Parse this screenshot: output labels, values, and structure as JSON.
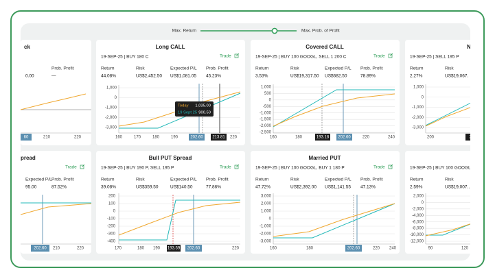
{
  "slider": {
    "left_label": "Max. Return",
    "right_label": "Max. Prob. of Profit"
  },
  "cards": [
    {
      "title": "ck",
      "stats": [
        {
          "value": "0.00"
        },
        {
          "label": "Prob. Profit",
          "value": "—"
        }
      ],
      "xticks": [
        "210",
        "220"
      ],
      "markers": [
        "60"
      ]
    },
    {
      "title": "Long CALL",
      "subtitle": "19-SEP-25 | BUY 180 C",
      "trade": "Trade",
      "stats": [
        {
          "label": "Return",
          "value": "44.08%"
        },
        {
          "label": "Risk",
          "value": "US$2,452.50"
        },
        {
          "label": "Expected P/L",
          "value": "US$1,081.05"
        },
        {
          "label": "Prob. Profit",
          "value": "45.23%"
        }
      ],
      "yticks": [
        "1,000",
        "0",
        "-1,000",
        "-2,000",
        "-3,000"
      ],
      "xticks": [
        "160",
        "170",
        "180",
        "190",
        "220"
      ],
      "markers": [
        "202.60",
        "213.81"
      ],
      "tooltip": {
        "today_label": "Today",
        "today_value": "1,035.00",
        "expiry_label": "19 Sept 25",
        "expiry_value": "900.50"
      }
    },
    {
      "title": "Covered CALL",
      "subtitle": "19-SEP-25 | BUY 100 GOOGL, SELL 1 200 C",
      "trade": "Trade",
      "stats": [
        {
          "label": "Return",
          "value": "3.53%"
        },
        {
          "label": "Risk",
          "value": "US$19,317.50"
        },
        {
          "label": "Expected P/L",
          "value": "US$682.50"
        },
        {
          "label": "Prob. Profit",
          "value": "78.89%"
        }
      ],
      "yticks": [
        "1,000",
        "500",
        "0",
        "-500",
        "-1,000",
        "-1,500",
        "-2,000",
        "-2,500"
      ],
      "xticks": [
        "160",
        "180",
        "220",
        "240"
      ],
      "markers": [
        "193.18",
        "202.60"
      ]
    },
    {
      "title": "N",
      "subtitle": "19-SEP-25 | SELL 195 P",
      "stats": [
        {
          "label": "Return",
          "value": "2.27%"
        },
        {
          "label": "Risk",
          "value": "US$19,067."
        }
      ],
      "yticks": [
        "1,000",
        "0",
        "-1,000",
        "-2,000",
        "-3,000"
      ],
      "xticks": [
        "200"
      ],
      "markers": [
        "2"
      ]
    },
    {
      "title": "pread",
      "trade": "Trade",
      "stats": [
        {
          "label": "Expected P/L",
          "value": "95.00"
        },
        {
          "label": "Prob. Profit",
          "value": "87.52%"
        }
      ],
      "xticks": [
        "210",
        "220"
      ],
      "markers": [
        "202.60"
      ]
    },
    {
      "title": "Bull PUT Spread",
      "subtitle": "19-SEP-25 | BUY 190 P, SELL 195 P",
      "trade": "Trade",
      "stats": [
        {
          "label": "Return",
          "value": "39.08%"
        },
        {
          "label": "Risk",
          "value": "US$359.50"
        },
        {
          "label": "Expected P/L",
          "value": "US$140.50"
        },
        {
          "label": "Prob. Profit",
          "value": "77.86%"
        }
      ],
      "yticks": [
        "200",
        "100",
        "0",
        "-100",
        "-200",
        "-300",
        "-400"
      ],
      "xticks": [
        "170",
        "180",
        "190",
        "220"
      ],
      "markers": [
        "193.59",
        "202.60"
      ]
    },
    {
      "title": "Married PUT",
      "subtitle": "19-SEP-25 | BUY 100 GOOGL, BUY 1 180 P",
      "trade": "Trade",
      "stats": [
        {
          "label": "Return",
          "value": "47.72%"
        },
        {
          "label": "Risk",
          "value": "US$2,392.00"
        },
        {
          "label": "Expected P/L",
          "value": "US$1,141.55"
        },
        {
          "label": "Prob. Profit",
          "value": "47.13%"
        }
      ],
      "yticks": [
        "3,000",
        "2,000",
        "1,000",
        "0",
        "-1,000",
        "-2,000",
        "-3,000"
      ],
      "xticks": [
        "160",
        "180",
        "220",
        "240"
      ],
      "markers": [
        "202.60"
      ]
    },
    {
      "subtitle": "19-SEP-25 | BUY 100 GOOGL,",
      "stats": [
        {
          "label": "Return",
          "value": "2.59%"
        },
        {
          "label": "Risk",
          "value": "US$19,007.."
        }
      ],
      "yticks": [
        "2,000",
        "0",
        "-2,000",
        "-4,000",
        "-6,000",
        "-8,000",
        "-10,000",
        "-12,000"
      ],
      "xticks": [
        "90",
        "120"
      ]
    }
  ]
}
